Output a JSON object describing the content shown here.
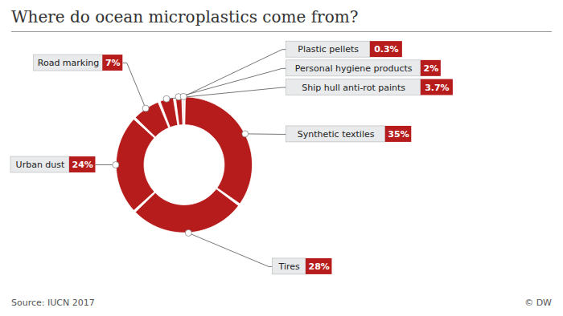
{
  "chart_data": {
    "type": "donut",
    "title": "Where do ocean microplastics come from?",
    "categories": [
      "Synthetic textiles",
      "Tires",
      "Urban dust",
      "Road marking",
      "Ship hull anti-rot paints",
      "Personal hygiene products",
      "Plastic pellets"
    ],
    "values": [
      35,
      28,
      24,
      7,
      3.7,
      2,
      0.3
    ],
    "value_labels": [
      "35%",
      "28%",
      "24%",
      "7%",
      "3.7%",
      "2%",
      "0.3%"
    ],
    "data_labels": true,
    "color": "#b71c1c",
    "annotations": [
      "Source: IUCN 2017",
      "© DW"
    ]
  }
}
